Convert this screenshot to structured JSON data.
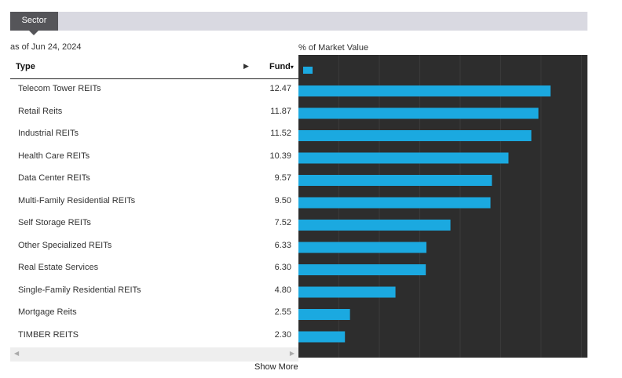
{
  "tab": {
    "label": "Sector"
  },
  "as_of": "as of Jun 24, 2024",
  "table": {
    "col_type": "Type",
    "col_expand": "▶",
    "col_fund": "Fund",
    "col_sort": "▾"
  },
  "show_more": "Show More",
  "scroll": {
    "left": "◀",
    "right": "▶"
  },
  "colors": {
    "bar": "#1ba9e0",
    "chart_bg": "#2d2d2d",
    "tab_bg": "#555559"
  },
  "chart_data": {
    "type": "bar",
    "orientation": "horizontal",
    "unit_label": "% of Market Value",
    "legend": "top-left",
    "grid": true,
    "xlim": [
      0,
      14
    ],
    "categories": [
      "Telecom Tower REITs",
      "Retail Reits",
      "Industrial REITs",
      "Health Care REITs",
      "Data Center REITs",
      "Multi-Family Residential REITs",
      "Self Storage REITs",
      "Other Specialized REITs",
      "Real Estate Services",
      "Single-Family Residential REITs",
      "Mortgage Reits",
      "TIMBER REITS"
    ],
    "values": [
      12.47,
      11.87,
      11.52,
      10.39,
      9.57,
      9.5,
      7.52,
      6.33,
      6.3,
      4.8,
      2.55,
      2.3
    ],
    "labels": [
      "12.47",
      "11.87",
      "11.52",
      "10.39",
      "9.57",
      "9.50",
      "7.52",
      "6.33",
      "6.30",
      "4.80",
      "2.55",
      "2.30"
    ]
  }
}
